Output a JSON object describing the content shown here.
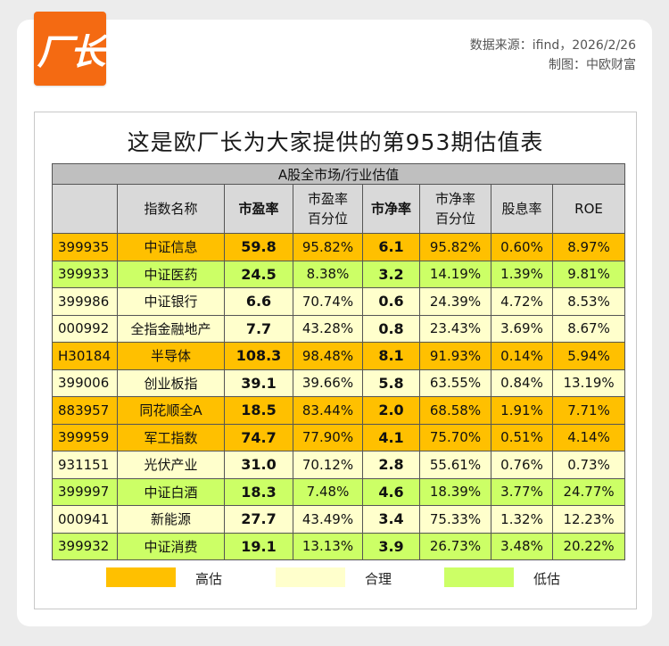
{
  "header": {
    "logo_text": "厂长",
    "source_line": "数据来源：ifind，2026/2/26",
    "author_line": "制图：中欧财富"
  },
  "title": "这是欧厂长为大家提供的第953期估值表",
  "table": {
    "group_header": "A股全市场/行业估值",
    "columns": {
      "code": "",
      "name": "指数名称",
      "pe": "市盈率",
      "pe_pct_1": "市盈率",
      "pe_pct_2": "百分位",
      "pb": "市净率",
      "pb_pct_1": "市净率",
      "pb_pct_2": "百分位",
      "div": "股息率",
      "roe": "ROE"
    },
    "rows": [
      {
        "code": "399935",
        "name": "中证信息",
        "pe": "59.8",
        "pe_pct": "95.82%",
        "pb": "6.1",
        "pb_pct": "95.82%",
        "div": "0.60%",
        "roe": "8.97%",
        "level": "high"
      },
      {
        "code": "399933",
        "name": "中证医药",
        "pe": "24.5",
        "pe_pct": "8.38%",
        "pb": "3.2",
        "pb_pct": "14.19%",
        "div": "1.39%",
        "roe": "9.81%",
        "level": "low"
      },
      {
        "code": "399986",
        "name": "中证银行",
        "pe": "6.6",
        "pe_pct": "70.74%",
        "pb": "0.6",
        "pb_pct": "24.39%",
        "div": "4.72%",
        "roe": "8.53%",
        "level": "fair"
      },
      {
        "code": "000992",
        "name": "全指金融地产",
        "pe": "7.7",
        "pe_pct": "43.28%",
        "pb": "0.8",
        "pb_pct": "23.43%",
        "div": "3.69%",
        "roe": "8.67%",
        "level": "fair"
      },
      {
        "code": "H30184",
        "name": "半导体",
        "pe": "108.3",
        "pe_pct": "98.48%",
        "pb": "8.1",
        "pb_pct": "91.93%",
        "div": "0.14%",
        "roe": "5.94%",
        "level": "high"
      },
      {
        "code": "399006",
        "name": "创业板指",
        "pe": "39.1",
        "pe_pct": "39.66%",
        "pb": "5.8",
        "pb_pct": "63.55%",
        "div": "0.84%",
        "roe": "13.19%",
        "level": "fair"
      },
      {
        "code": "883957",
        "name": "同花顺全A",
        "pe": "18.5",
        "pe_pct": "83.44%",
        "pb": "2.0",
        "pb_pct": "68.58%",
        "div": "1.91%",
        "roe": "7.71%",
        "level": "high"
      },
      {
        "code": "399959",
        "name": "军工指数",
        "pe": "74.7",
        "pe_pct": "77.90%",
        "pb": "4.1",
        "pb_pct": "75.70%",
        "div": "0.51%",
        "roe": "4.14%",
        "level": "high"
      },
      {
        "code": "931151",
        "name": "光伏产业",
        "pe": "31.0",
        "pe_pct": "70.12%",
        "pb": "2.8",
        "pb_pct": "55.61%",
        "div": "0.76%",
        "roe": "0.73%",
        "level": "fair"
      },
      {
        "code": "399997",
        "name": "中证白酒",
        "pe": "18.3",
        "pe_pct": "7.48%",
        "pb": "4.6",
        "pb_pct": "18.39%",
        "div": "3.77%",
        "roe": "24.77%",
        "level": "low"
      },
      {
        "code": "000941",
        "name": "新能源",
        "pe": "27.7",
        "pe_pct": "43.49%",
        "pb": "3.4",
        "pb_pct": "75.33%",
        "div": "1.32%",
        "roe": "12.23%",
        "level": "fair"
      },
      {
        "code": "399932",
        "name": "中证消费",
        "pe": "19.1",
        "pe_pct": "13.13%",
        "pb": "3.9",
        "pb_pct": "26.73%",
        "div": "3.48%",
        "roe": "20.22%",
        "level": "low"
      }
    ]
  },
  "legend": [
    {
      "key": "high",
      "label": "高估",
      "color": "#ffc000"
    },
    {
      "key": "fair",
      "label": "合理",
      "color": "#ffffcc"
    },
    {
      "key": "low",
      "label": "低估",
      "color": "#ccff66"
    }
  ]
}
